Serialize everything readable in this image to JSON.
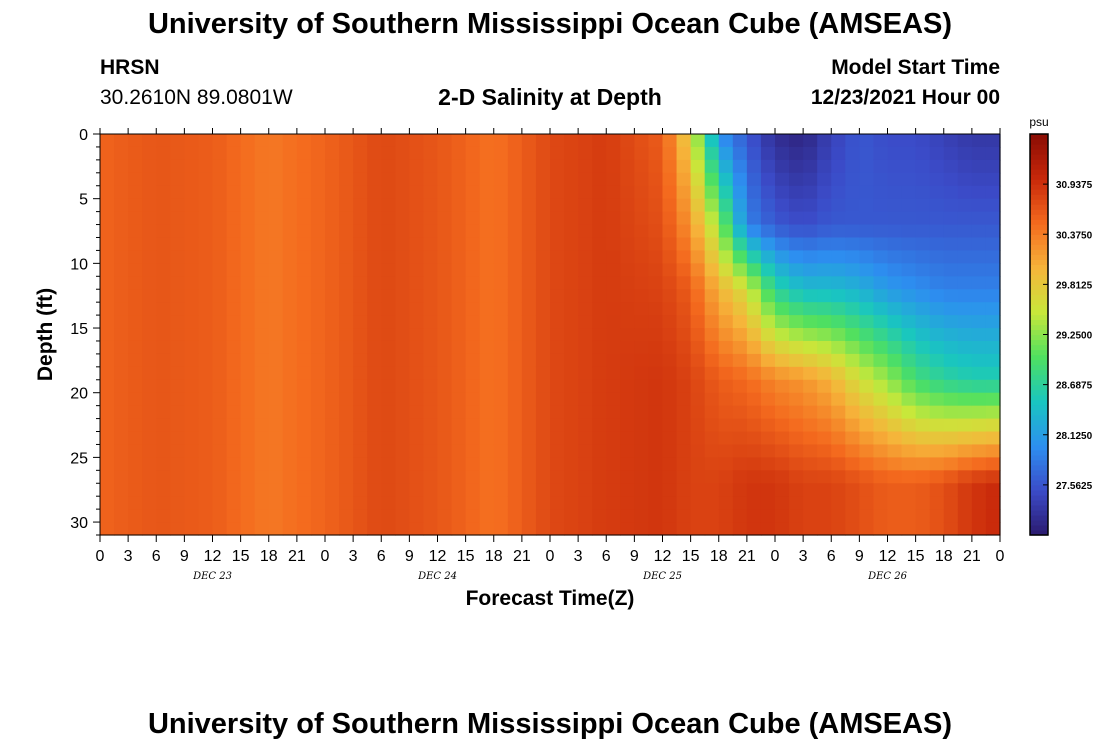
{
  "header": {
    "title": "University of Southern Mississippi Ocean Cube (AMSEAS)",
    "station": "HRSN",
    "coordinates": "30.2610N  89.0801W",
    "chart_title": "2-D Salinity at Depth",
    "model_start_label": "Model Start Time",
    "model_start_value": "12/23/2021 Hour 00"
  },
  "footer": {
    "title": "University of Southern Mississippi Ocean Cube (AMSEAS)"
  },
  "chart_data": {
    "type": "heatmap",
    "title": "2-D Salinity at Depth",
    "xlabel": "Forecast Time(Z)",
    "ylabel": "Depth (ft)",
    "xlim": [
      0,
      96
    ],
    "ylim": [
      31,
      0
    ],
    "x_ticks": [
      0,
      3,
      6,
      9,
      12,
      15,
      18,
      21,
      24,
      27,
      30,
      33,
      36,
      39,
      42,
      45,
      48,
      51,
      54,
      57,
      60,
      63,
      66,
      69,
      72,
      75,
      78,
      81,
      84,
      87,
      90,
      93,
      96
    ],
    "x_tick_labels": [
      "0",
      "3",
      "6",
      "9",
      "12",
      "15",
      "18",
      "21",
      "0",
      "3",
      "6",
      "9",
      "12",
      "15",
      "18",
      "21",
      "0",
      "3",
      "6",
      "9",
      "12",
      "15",
      "18",
      "21",
      "0",
      "3",
      "6",
      "9",
      "12",
      "15",
      "18",
      "21",
      "0"
    ],
    "y_ticks": [
      0,
      5,
      10,
      15,
      20,
      25,
      30
    ],
    "y_tick_labels": [
      "0",
      "5",
      "10",
      "15",
      "20",
      "25",
      "30"
    ],
    "date_labels": [
      {
        "text": "DEC 23",
        "x": 12
      },
      {
        "text": "DEC 24",
        "x": 36
      },
      {
        "text": "DEC 25",
        "x": 60
      },
      {
        "text": "DEC 26",
        "x": 84
      }
    ],
    "colorbar": {
      "unit": "psu",
      "range": [
        27.0,
        31.5
      ],
      "tick_values": [
        30.9375,
        30.375,
        29.8125,
        29.25,
        28.6875,
        28.125,
        27.5625
      ],
      "tick_labels": [
        "30.9375",
        "30.3750",
        "29.8125",
        "29.2500",
        "28.6875",
        "28.1250",
        "27.5625"
      ],
      "colors": [
        "#2b1a6e",
        "#3b4bc8",
        "#2d8ff0",
        "#19c6c0",
        "#4fe060",
        "#c8e83a",
        "#f6b43a",
        "#f46a1e",
        "#c8280a",
        "#8a0c04"
      ]
    },
    "salinity_profiles": [
      {
        "hour": 0,
        "salinity": [
          30.55,
          30.55,
          30.55,
          30.55,
          30.55
        ]
      },
      {
        "hour": 6,
        "salinity": [
          30.65,
          30.65,
          30.65,
          30.65,
          30.65
        ]
      },
      {
        "hour": 12,
        "salinity": [
          30.6,
          30.6,
          30.6,
          30.6,
          30.6
        ]
      },
      {
        "hour": 18,
        "salinity": [
          30.4,
          30.4,
          30.4,
          30.4,
          30.4
        ]
      },
      {
        "hour": 24,
        "salinity": [
          30.55,
          30.55,
          30.55,
          30.55,
          30.55
        ]
      },
      {
        "hour": 30,
        "salinity": [
          30.75,
          30.75,
          30.75,
          30.75,
          30.75
        ]
      },
      {
        "hour": 36,
        "salinity": [
          30.65,
          30.65,
          30.65,
          30.65,
          30.65
        ]
      },
      {
        "hour": 42,
        "salinity": [
          30.45,
          30.45,
          30.45,
          30.45,
          30.45
        ]
      },
      {
        "hour": 48,
        "salinity": [
          30.75,
          30.75,
          30.75,
          30.75,
          30.75
        ]
      },
      {
        "hour": 54,
        "salinity": [
          30.85,
          30.85,
          30.85,
          30.85,
          30.85
        ]
      },
      {
        "hour": 60,
        "salinity": [
          30.6,
          30.7,
          30.8,
          30.9,
          30.9
        ]
      },
      {
        "hour": 63,
        "salinity": [
          29.7,
          30.2,
          30.6,
          30.8,
          30.8
        ]
      },
      {
        "hour": 66,
        "salinity": [
          28.0,
          29.3,
          30.0,
          30.6,
          30.8
        ]
      },
      {
        "hour": 69,
        "salinity": [
          27.6,
          27.9,
          29.6,
          30.5,
          30.9
        ]
      },
      {
        "hour": 72,
        "salinity": [
          27.2,
          27.6,
          28.7,
          30.3,
          30.9
        ]
      },
      {
        "hour": 75,
        "salinity": [
          27.1,
          27.5,
          28.4,
          30.2,
          30.8
        ]
      },
      {
        "hour": 78,
        "salinity": [
          27.4,
          27.6,
          28.4,
          30.0,
          30.8
        ]
      },
      {
        "hour": 81,
        "salinity": [
          27.6,
          27.6,
          28.3,
          29.6,
          30.7
        ]
      },
      {
        "hour": 84,
        "salinity": [
          27.5,
          27.6,
          28.1,
          29.3,
          30.6
        ]
      },
      {
        "hour": 87,
        "salinity": [
          27.5,
          27.6,
          28.0,
          28.9,
          30.6
        ]
      },
      {
        "hour": 90,
        "salinity": [
          27.4,
          27.6,
          27.9,
          28.7,
          30.7
        ]
      },
      {
        "hour": 93,
        "salinity": [
          27.3,
          27.6,
          27.9,
          28.6,
          30.9
        ]
      },
      {
        "hour": 96,
        "salinity": [
          27.3,
          27.6,
          27.9,
          28.6,
          31.0
        ]
      }
    ],
    "profile_depths": [
      0,
      7,
      12,
      19,
      27
    ]
  }
}
